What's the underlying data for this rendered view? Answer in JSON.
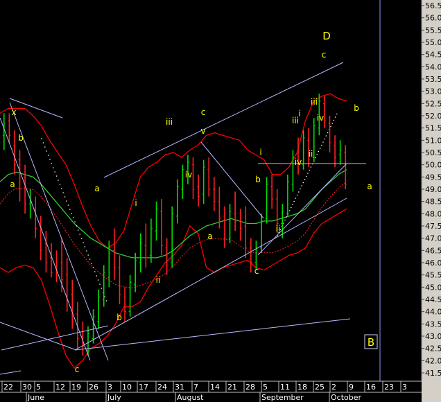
{
  "colors": {
    "background": "#000000",
    "axis_panel": "#d4d0c8",
    "up_bar": "#00dd00",
    "down_bar": "#ff2020",
    "bollinger": "#ff0000",
    "ma_green": "#33cc33",
    "ma_dotted": "#ff2020",
    "trendline": "#b8b8ff",
    "cursor_line": "#9090ff",
    "wave_label": "#ffff00",
    "dots": "#ffffff"
  },
  "chart_data": {
    "type": "candlestick",
    "ylim": [
      41.2,
      56.9
    ],
    "y_ticks": [
      "41.5",
      "42.0",
      "42.5",
      "43.0",
      "43.5",
      "44.0",
      "44.5",
      "45.0",
      "45.5",
      "46.0",
      "46.5",
      "47.0",
      "47.5",
      "48.0",
      "48.5",
      "49.0",
      "49.5",
      "50.0",
      "50.5",
      "51.0",
      "51.5",
      "52.0",
      "52.5",
      "53.0",
      "53.5",
      "54.0",
      "54.5",
      "55.0",
      "55.5",
      "56.0",
      "56.5"
    ],
    "x_ticks": [
      "22",
      "30",
      "5",
      "12",
      "19",
      "26",
      "3",
      "10",
      "17",
      "24",
      "31",
      "7",
      "14",
      "21",
      "28",
      "5",
      "11",
      "18",
      "25",
      "2",
      "9",
      "16",
      "23",
      "3"
    ],
    "months": [
      "June",
      "July",
      "August",
      "September",
      "October"
    ],
    "bars": [
      {
        "o": 51.2,
        "h": 52.1,
        "l": 50.6,
        "c": 51.7
      },
      {
        "o": 51.8,
        "h": 52.1,
        "l": 50.9,
        "c": 51.2
      },
      {
        "o": 50.8,
        "h": 51.4,
        "l": 49.6,
        "c": 50.0
      },
      {
        "o": 50.2,
        "h": 50.6,
        "l": 48.5,
        "c": 49.0
      },
      {
        "o": 49.5,
        "h": 50.0,
        "l": 48.0,
        "c": 48.4
      },
      {
        "o": 48.4,
        "h": 49.0,
        "l": 47.8,
        "c": 48.5
      },
      {
        "o": 48.2,
        "h": 48.7,
        "l": 47.0,
        "c": 47.4
      },
      {
        "o": 47.5,
        "h": 47.9,
        "l": 46.1,
        "c": 46.5
      },
      {
        "o": 46.8,
        "h": 47.3,
        "l": 45.6,
        "c": 46.0
      },
      {
        "o": 46.2,
        "h": 46.8,
        "l": 45.4,
        "c": 45.6
      },
      {
        "o": 45.8,
        "h": 46.5,
        "l": 45.2,
        "c": 45.6
      },
      {
        "o": 46.0,
        "h": 47.0,
        "l": 44.8,
        "c": 45.3
      },
      {
        "o": 45.5,
        "h": 46.2,
        "l": 44.0,
        "c": 44.4
      },
      {
        "o": 44.7,
        "h": 45.3,
        "l": 43.3,
        "c": 43.6
      },
      {
        "o": 43.9,
        "h": 44.4,
        "l": 42.5,
        "c": 42.9
      },
      {
        "o": 43.0,
        "h": 43.6,
        "l": 42.2,
        "c": 42.6
      },
      {
        "o": 42.4,
        "h": 43.4,
        "l": 42.2,
        "c": 43.1
      },
      {
        "o": 42.9,
        "h": 44.1,
        "l": 42.7,
        "c": 43.8
      },
      {
        "o": 43.6,
        "h": 44.9,
        "l": 43.3,
        "c": 44.6
      },
      {
        "o": 44.5,
        "h": 45.9,
        "l": 44.2,
        "c": 45.6
      },
      {
        "o": 45.4,
        "h": 46.9,
        "l": 45.0,
        "c": 46.6
      },
      {
        "o": 46.5,
        "h": 47.4,
        "l": 45.3,
        "c": 45.8
      },
      {
        "o": 45.8,
        "h": 46.3,
        "l": 44.3,
        "c": 44.7
      },
      {
        "o": 44.6,
        "h": 45.0,
        "l": 43.6,
        "c": 44.0
      },
      {
        "o": 44.0,
        "h": 45.5,
        "l": 43.8,
        "c": 45.2
      },
      {
        "o": 45.1,
        "h": 46.4,
        "l": 44.8,
        "c": 46.1
      },
      {
        "o": 46.0,
        "h": 47.2,
        "l": 45.6,
        "c": 46.8
      },
      {
        "o": 46.7,
        "h": 47.6,
        "l": 45.8,
        "c": 46.2
      },
      {
        "o": 46.3,
        "h": 47.8,
        "l": 46.0,
        "c": 47.4
      },
      {
        "o": 47.3,
        "h": 48.5,
        "l": 46.9,
        "c": 48.2
      },
      {
        "o": 48.1,
        "h": 48.6,
        "l": 46.3,
        "c": 46.7
      },
      {
        "o": 46.6,
        "h": 47.0,
        "l": 45.5,
        "c": 45.9
      },
      {
        "o": 46.0,
        "h": 48.3,
        "l": 45.8,
        "c": 48.0
      },
      {
        "o": 47.9,
        "h": 49.4,
        "l": 47.6,
        "c": 49.1
      },
      {
        "o": 49.0,
        "h": 50.0,
        "l": 48.6,
        "c": 49.8
      },
      {
        "o": 49.7,
        "h": 50.4,
        "l": 49.2,
        "c": 50.1
      },
      {
        "o": 50.0,
        "h": 50.3,
        "l": 48.6,
        "c": 49.0
      },
      {
        "o": 49.1,
        "h": 49.6,
        "l": 48.3,
        "c": 48.7
      },
      {
        "o": 48.8,
        "h": 50.2,
        "l": 48.4,
        "c": 49.9
      },
      {
        "o": 49.8,
        "h": 50.3,
        "l": 48.7,
        "c": 49.0
      },
      {
        "o": 49.0,
        "h": 49.5,
        "l": 48.1,
        "c": 48.5
      },
      {
        "o": 48.5,
        "h": 49.1,
        "l": 47.4,
        "c": 47.8
      },
      {
        "o": 47.9,
        "h": 48.3,
        "l": 46.6,
        "c": 47.0
      },
      {
        "o": 47.0,
        "h": 48.4,
        "l": 46.8,
        "c": 48.1
      },
      {
        "o": 48.0,
        "h": 48.9,
        "l": 47.3,
        "c": 47.7
      },
      {
        "o": 47.7,
        "h": 48.2,
        "l": 46.9,
        "c": 47.4
      },
      {
        "o": 47.5,
        "h": 48.3,
        "l": 46.2,
        "c": 46.6
      },
      {
        "o": 46.6,
        "h": 47.0,
        "l": 45.6,
        "c": 46.0
      },
      {
        "o": 46.0,
        "h": 46.9,
        "l": 45.7,
        "c": 46.6
      },
      {
        "o": 46.6,
        "h": 48.0,
        "l": 46.4,
        "c": 47.7
      },
      {
        "o": 47.8,
        "h": 49.5,
        "l": 47.6,
        "c": 49.2
      },
      {
        "o": 49.1,
        "h": 49.6,
        "l": 48.2,
        "c": 48.6
      },
      {
        "o": 48.6,
        "h": 49.0,
        "l": 47.2,
        "c": 47.6
      },
      {
        "o": 47.6,
        "h": 48.4,
        "l": 47.0,
        "c": 48.1
      },
      {
        "o": 48.0,
        "h": 49.6,
        "l": 47.9,
        "c": 49.3
      },
      {
        "o": 49.2,
        "h": 50.6,
        "l": 48.9,
        "c": 50.3
      },
      {
        "o": 50.2,
        "h": 51.1,
        "l": 49.6,
        "c": 50.0
      },
      {
        "o": 50.0,
        "h": 51.4,
        "l": 49.8,
        "c": 51.1
      },
      {
        "o": 51.0,
        "h": 51.5,
        "l": 49.9,
        "c": 50.2
      },
      {
        "o": 50.3,
        "h": 51.9,
        "l": 50.1,
        "c": 51.6
      },
      {
        "o": 51.5,
        "h": 52.9,
        "l": 51.2,
        "c": 52.6
      },
      {
        "o": 52.5,
        "h": 52.8,
        "l": 51.5,
        "c": 51.8
      },
      {
        "o": 51.7,
        "h": 52.0,
        "l": 50.5,
        "c": 50.9
      },
      {
        "o": 50.8,
        "h": 51.2,
        "l": 49.9,
        "c": 50.3
      },
      {
        "o": 50.4,
        "h": 51.0,
        "l": 50.0,
        "c": 50.6
      },
      {
        "o": 50.5,
        "h": 50.8,
        "l": 49.0,
        "c": 49.2
      }
    ],
    "moving_average": [
      49.3,
      49.6,
      49.7,
      49.6,
      49.5,
      49.2,
      48.8,
      48.4,
      48.0,
      47.6,
      47.3,
      47.0,
      46.8,
      46.6,
      46.4,
      46.3,
      46.2,
      46.2,
      46.2,
      46.2,
      46.3,
      46.5,
      46.8,
      47.1,
      47.3,
      47.5,
      47.6,
      47.7,
      47.8,
      47.7,
      47.6,
      47.6,
      47.7,
      47.7,
      47.8,
      47.9,
      48.0,
      48.2,
      48.6,
      49.0,
      49.3,
      49.6,
      49.8
    ],
    "bollinger_upper": [
      52.1,
      52.3,
      52.3,
      52.3,
      52.0,
      51.6,
      51.0,
      50.5,
      50.0,
      49.2,
      48.3,
      47.5,
      46.9,
      46.6,
      46.8,
      47.3,
      48.4,
      49.5,
      49.9,
      50.1,
      50.4,
      50.5,
      50.3,
      50.6,
      50.8,
      51.2,
      51.3,
      51.2,
      51.1,
      51.0,
      50.6,
      50.4,
      50.2,
      49.6,
      49.6,
      49.9,
      50.5,
      51.8,
      52.6,
      52.8,
      52.9,
      52.7,
      52.6
    ],
    "bollinger_lower": [
      45.8,
      45.6,
      45.8,
      45.9,
      45.8,
      45.3,
      44.3,
      43.2,
      42.2,
      41.7,
      42.0,
      42.5,
      42.7,
      43.0,
      43.5,
      44.2,
      44.2,
      44.4,
      45.0,
      45.5,
      46.0,
      46.3,
      46.7,
      47.5,
      47.2,
      45.8,
      45.6,
      45.8,
      45.9,
      46.0,
      46.1,
      45.8,
      45.7,
      45.9,
      46.1,
      46.3,
      46.4,
      46.6,
      47.2,
      47.6,
      47.8,
      48.0,
      48.2
    ],
    "wave_labels": [
      {
        "t": "x",
        "x": 2,
        "y": 52.3
      },
      {
        "t": "b",
        "x": 7,
        "y": 50.4
      },
      {
        "t": "a",
        "x": 5,
        "y": 48.1
      },
      {
        "t": "c",
        "x": 29,
        "y": 41.7
      },
      {
        "t": "a",
        "x": 36,
        "y": 47.6
      },
      {
        "t": "b",
        "x": 45,
        "y": 43.1
      },
      {
        "t": "i",
        "x": 51,
        "y": 47.8
      },
      {
        "t": "ii",
        "x": 59,
        "y": 44.6
      },
      {
        "t": "iii",
        "x": 63,
        "y": 51.3
      },
      {
        "t": "iv",
        "x": 70,
        "y": 48.9
      },
      {
        "t": "v",
        "x": 76,
        "y": 51.0
      },
      {
        "t": "c",
        "x": 76,
        "y": 51.6
      },
      {
        "t": "a",
        "x": 79,
        "y": 46.6
      },
      {
        "t": "b",
        "x": 101,
        "y": 46.6
      },
      {
        "t": "c",
        "x": 97,
        "y": 45.0
      },
      {
        "t": "i",
        "x": 98,
        "y": 50.6
      },
      {
        "t": "ii",
        "x": 105,
        "y": 47.2
      },
      {
        "t": "iii",
        "x": 111,
        "y": 51.3
      },
      {
        "t": "i",
        "x": 113,
        "y": 51.6
      },
      {
        "t": "iv",
        "x": 113,
        "y": 49.7
      },
      {
        "t": "ii",
        "x": 117,
        "y": 50.1
      },
      {
        "t": "iii",
        "x": 119,
        "y": 52.8
      },
      {
        "t": "iv",
        "x": 121,
        "y": 51.4
      },
      {
        "t": "b",
        "x": 135,
        "y": 51.9
      },
      {
        "t": "a",
        "x": 140,
        "y": 48.4
      },
      {
        "t": "c",
        "x": 122,
        "y": 53.9
      },
      {
        "t": "D",
        "x": 123,
        "y": 55.0
      }
    ],
    "box_label": "B"
  }
}
